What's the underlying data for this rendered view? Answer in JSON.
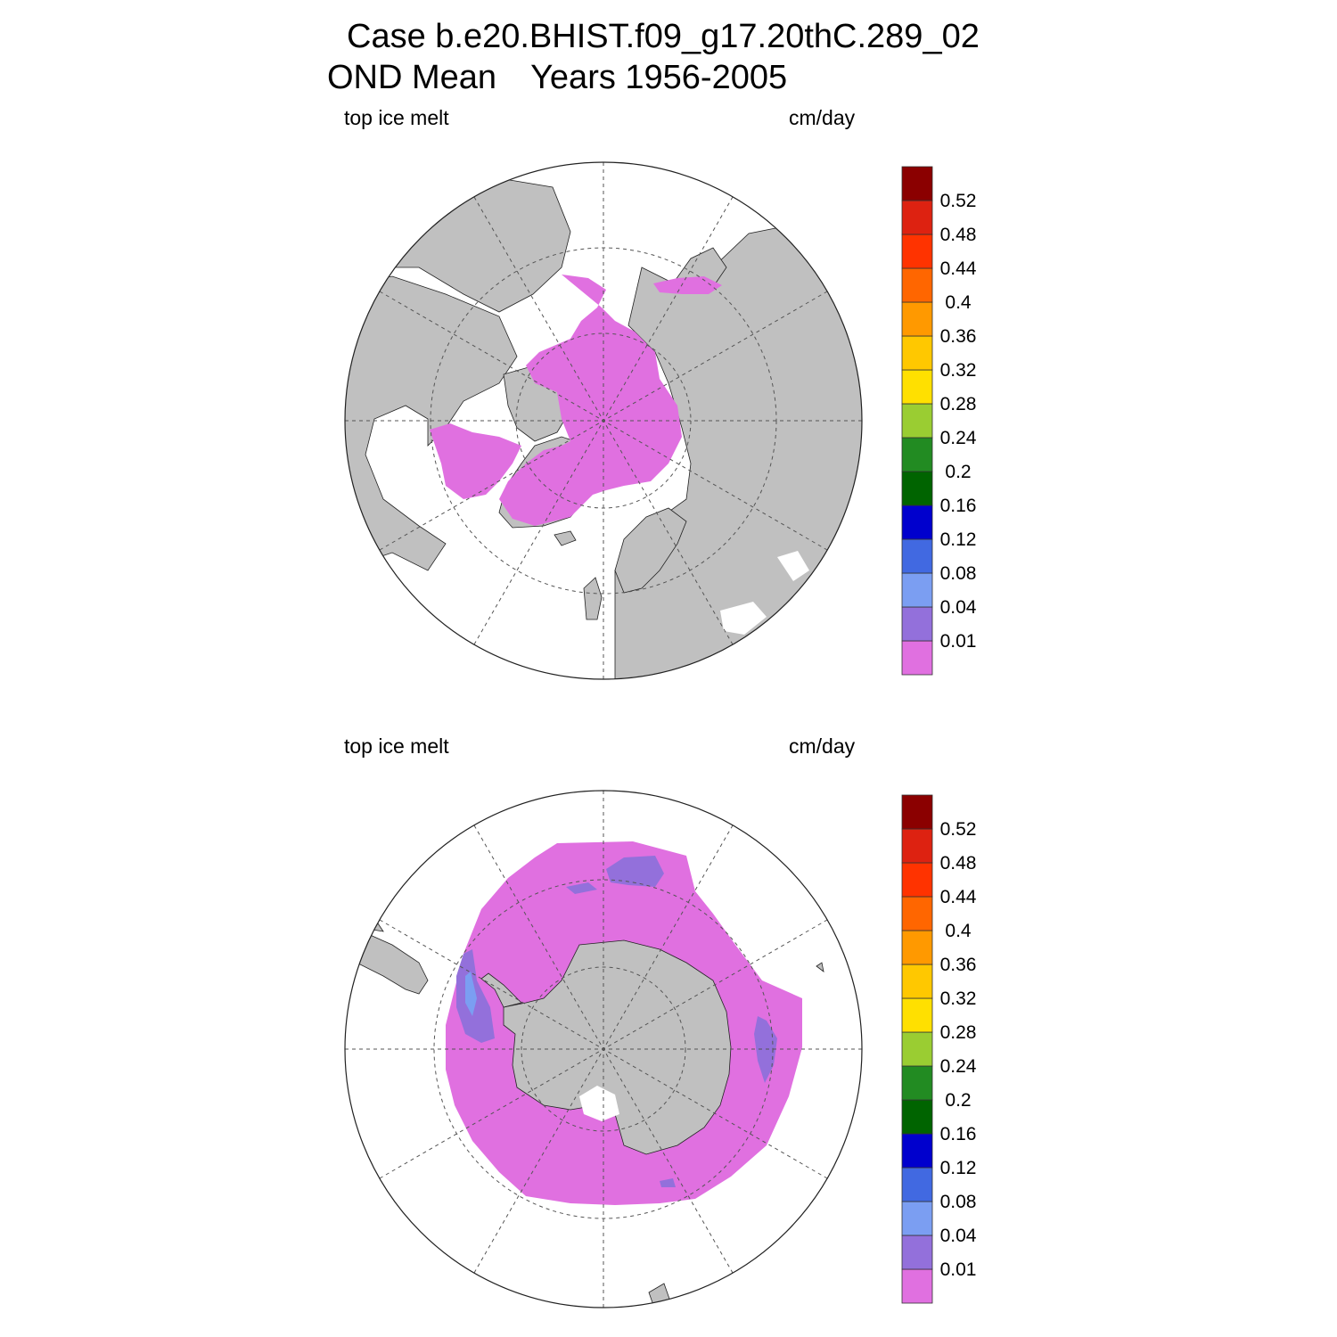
{
  "header": {
    "case_line": "Case b.e20.BHIST.f09_g17.20thC.289_02",
    "mean_label": "OND Mean",
    "years_label": "Years 1956-2005"
  },
  "panels": [
    {
      "hemisphere": "north",
      "variable_label": "top ice melt",
      "units_label": "cm/day"
    },
    {
      "hemisphere": "south",
      "variable_label": "top ice melt",
      "units_label": "cm/day"
    }
  ],
  "colorbar": {
    "levels": [
      "0.01",
      "0.04",
      "0.08",
      "0.12",
      "0.16",
      "0.2",
      "0.24",
      "0.28",
      "0.32",
      "0.36",
      "0.4",
      "0.44",
      "0.48",
      "0.52"
    ],
    "colors": [
      "#e070e0",
      "#9370db",
      "#7b9ef2",
      "#4169e1",
      "#0000cd",
      "#006400",
      "#228b22",
      "#9acd32",
      "#ffe000",
      "#ffc800",
      "#ff9900",
      "#ff6600",
      "#ff3300",
      "#dd2211",
      "#8b0000"
    ]
  },
  "map_colors": {
    "land": "#c0c0c0",
    "ocean": "#ffffff",
    "ice_melt_low": "#e070e0",
    "ice_melt_mid": "#9370db",
    "ice_melt_high": "#7b9ef2"
  }
}
